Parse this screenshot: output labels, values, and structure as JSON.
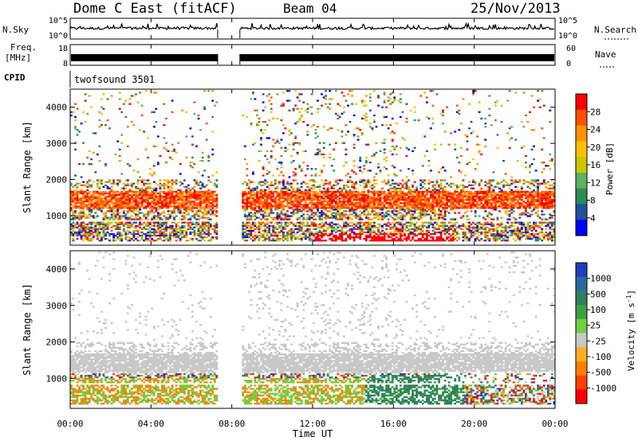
{
  "header": {
    "title": "Dome C East (fitACF)",
    "beam": "Beam 04",
    "date": "25/Nov/2013"
  },
  "small_panels": {
    "nsky_label": "N.Sky",
    "nsky_ticks": [
      "10^5",
      "10^0"
    ],
    "nsearch_label": "N.Search",
    "nsearch_ticks": [
      "10^5",
      "10^0"
    ],
    "freq_label_1": "Freq.",
    "freq_label_2": "[MHz]",
    "freq_ticks": [
      "18",
      "8"
    ],
    "nave_label": "Nave",
    "nave_ticks": [
      "60",
      "0"
    ],
    "cpid_label": "CPID",
    "cpid_value": "twofsound 3501"
  },
  "colorbars": {
    "power": {
      "label": "Power [dB]",
      "ticks": [
        "28",
        "24",
        "20",
        "16",
        "12",
        "8",
        "4"
      ],
      "colors": [
        "#ff0000",
        "#ff5000",
        "#ff9000",
        "#ffc000",
        "#c8c800",
        "#60b060",
        "#2e8b57",
        "#2050a0",
        "#0000ff"
      ]
    },
    "velocity": {
      "label_main": "Velocity [m s",
      "label_sup": "-1",
      "label_end": "]",
      "ticks": [
        "1000",
        "500",
        "100",
        "25",
        "-25",
        "-100",
        "-500",
        "-1000"
      ],
      "colors": [
        "#1f3fbf",
        "#2a6aa0",
        "#2f7f5f",
        "#3aa040",
        "#70d040",
        "#c8c8c8",
        "#ffb020",
        "#ff8000",
        "#ff4000",
        "#ff0000"
      ]
    }
  },
  "chart_data": [
    {
      "type": "heatmap",
      "title": "Power",
      "ylabel": "Slant Range [km]",
      "xlabel": "",
      "xlim": [
        0,
        24
      ],
      "ylim": [
        180,
        4500
      ],
      "yticks": [
        1000,
        2000,
        3000,
        4000
      ],
      "gap_hours": [
        7.3,
        8.4
      ],
      "bands": [
        {
          "range_km": [
            1200,
            1600
          ],
          "hours": [
            0,
            24
          ],
          "value": "26 dB"
        },
        {
          "range_km": [
            850,
            1150
          ],
          "hours": [
            0,
            24
          ],
          "value": "22 dB"
        },
        {
          "range_km": [
            250,
            700
          ],
          "hours": [
            0,
            24
          ],
          "value": "20 dB"
        }
      ]
    },
    {
      "type": "heatmap",
      "title": "Velocity",
      "ylabel": "Slant Range [km]",
      "xlabel": "Time UT",
      "xlim": [
        0,
        24
      ],
      "ylim": [
        180,
        4500
      ],
      "yticks": [
        1000,
        2000,
        3000,
        4000
      ],
      "xticks": [
        "00:00",
        "04:00",
        "08:00",
        "12:00",
        "16:00",
        "20:00",
        "00:00"
      ],
      "gap_hours": [
        7.3,
        8.4
      ],
      "bands": [
        {
          "range_km": [
            1100,
            1900
          ],
          "hours": [
            0,
            24
          ],
          "value": "0 m/s"
        },
        {
          "range_km": [
            300,
            1000
          ],
          "hours": [
            0,
            7.3
          ],
          "value": "100 m/s"
        },
        {
          "range_km": [
            300,
            1000
          ],
          "hours": [
            14.8,
            19.5
          ],
          "value": "300 m/s"
        }
      ]
    }
  ]
}
